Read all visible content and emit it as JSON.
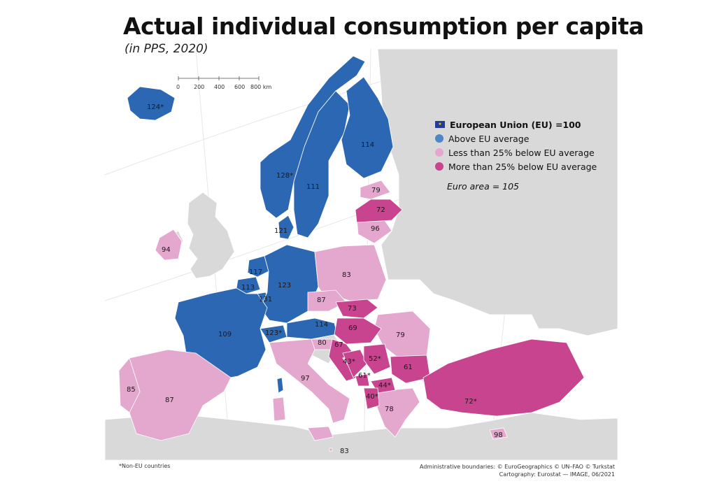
{
  "title": "Actual individual consumption per capita",
  "subtitle": "(in PPS, 2020)",
  "colors": {
    "above": "#2b67b2",
    "less_below": "#e4a7cd",
    "more_below": "#c8448e",
    "non_eu_land": "#d9d9d9",
    "sea": "#ffffff"
  },
  "legend": {
    "eu_label": "European Union (EU) =100",
    "items": [
      {
        "label": "Above EU average",
        "color": "#4f86c6"
      },
      {
        "label": "Less than 25% below EU average",
        "color": "#e4a7cd"
      },
      {
        "label": "More than 25% below EU average",
        "color": "#c8448e"
      }
    ],
    "euro_area": "Euro area = 105"
  },
  "scale": {
    "ticks": [
      "0",
      "200",
      "400",
      "600",
      "800 km"
    ]
  },
  "regions": [
    {
      "label": "124*",
      "category": "above"
    },
    {
      "label": "128*",
      "category": "above"
    },
    {
      "label": "111",
      "category": "above"
    },
    {
      "label": "114",
      "category": "above"
    },
    {
      "label": "121",
      "category": "above"
    },
    {
      "label": "117",
      "category": "above"
    },
    {
      "label": "113",
      "category": "above"
    },
    {
      "label": "123",
      "category": "above"
    },
    {
      "label": "131",
      "category": "above"
    },
    {
      "label": "109",
      "category": "above"
    },
    {
      "label": "123*",
      "category": "above"
    },
    {
      "label": "114",
      "category": "above"
    },
    {
      "label": "79",
      "category": "less_below"
    },
    {
      "label": "96",
      "category": "less_below"
    },
    {
      "label": "94",
      "category": "less_below"
    },
    {
      "label": "83",
      "category": "less_below"
    },
    {
      "label": "87",
      "category": "less_below"
    },
    {
      "label": "79",
      "category": "less_below"
    },
    {
      "label": "80",
      "category": "less_below"
    },
    {
      "label": "97",
      "category": "less_below"
    },
    {
      "label": "85",
      "category": "less_below"
    },
    {
      "label": "87",
      "category": "less_below"
    },
    {
      "label": "78",
      "category": "less_below"
    },
    {
      "label": "98",
      "category": "less_below"
    },
    {
      "label": "83",
      "category": "less_below"
    },
    {
      "label": "72",
      "category": "more_below"
    },
    {
      "label": "73",
      "category": "more_below"
    },
    {
      "label": "69",
      "category": "more_below"
    },
    {
      "label": "67",
      "category": "more_below"
    },
    {
      "label": "43*",
      "category": "more_below"
    },
    {
      "label": "52*",
      "category": "more_below"
    },
    {
      "label": "61*",
      "category": "more_below"
    },
    {
      "label": "61",
      "category": "more_below"
    },
    {
      "label": "44*",
      "category": "more_below"
    },
    {
      "label": "40*",
      "category": "more_below"
    },
    {
      "label": "72*",
      "category": "more_below"
    }
  ],
  "footnote_left": "*Non-EU countries",
  "footnote_right": [
    "Administrative boundaries: © EuroGeographics © UN–FAO © Turkstat",
    "Cartography: Eurostat — IMAGE, 06/2021"
  ]
}
